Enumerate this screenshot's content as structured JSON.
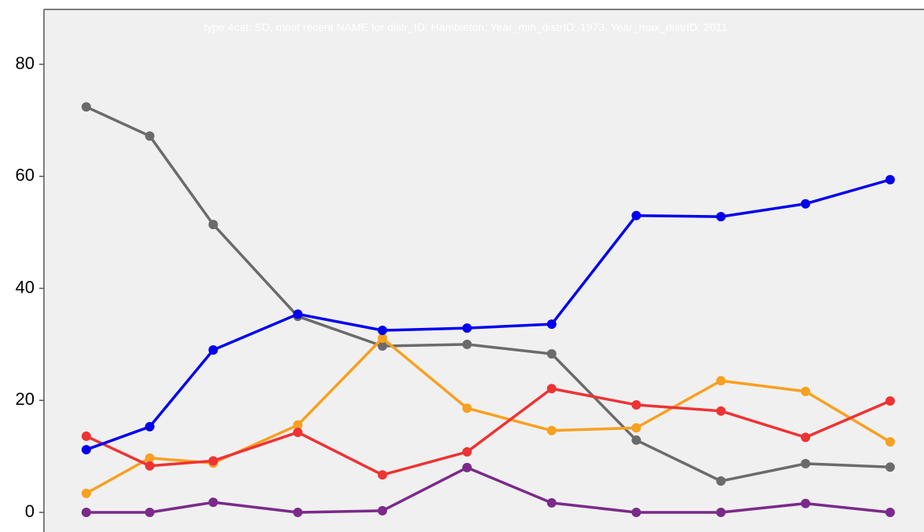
{
  "chart_data": {
    "type": "line",
    "title": "type 4cat: SD, most recent NAME for distr_ID: Hambleton, Year_min_distrID: 1973,  Year_max_distrID: 2011",
    "x": [
      1973,
      1976,
      1979,
      1983,
      1987,
      1991,
      1995,
      1999,
      2003,
      2007,
      2011
    ],
    "xlim": [
      1971,
      2012.6
    ],
    "ylim": [
      -3.5,
      89.8
    ],
    "yticks": [
      0,
      20,
      40,
      60,
      80
    ],
    "grid": false,
    "series": [
      {
        "color": "#6b6b6b",
        "values": [
          72.4,
          67.2,
          51.4,
          35.0,
          29.7,
          30.0,
          28.3,
          12.9,
          5.6,
          8.7,
          8.1
        ]
      },
      {
        "color": "#f8a020",
        "values": [
          3.4,
          9.7,
          8.8,
          15.6,
          31.1,
          18.6,
          14.6,
          15.1,
          23.5,
          21.6,
          12.6
        ]
      },
      {
        "color": "#ee3333",
        "values": [
          13.6,
          8.3,
          9.2,
          14.3,
          6.7,
          10.8,
          22.1,
          19.2,
          18.1,
          13.4,
          19.9
        ]
      },
      {
        "color": "#7b2a8a",
        "values": [
          0,
          0,
          1.8,
          0,
          0.3,
          8.0,
          1.7,
          0,
          0,
          1.6,
          0
        ]
      },
      {
        "color": "#0000ee",
        "values": [
          11.2,
          15.3,
          29.0,
          35.4,
          32.5,
          32.9,
          33.6,
          53.0,
          52.8,
          55.1,
          59.4
        ]
      }
    ]
  }
}
